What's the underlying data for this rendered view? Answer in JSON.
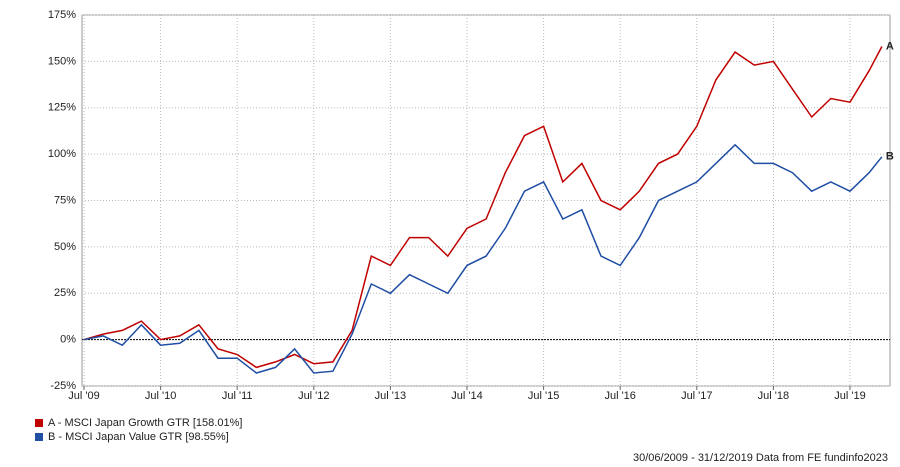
{
  "chart_data": {
    "type": "line",
    "x": [
      "2009-07",
      "2009-10",
      "2010-01",
      "2010-04",
      "2010-07",
      "2010-10",
      "2011-01",
      "2011-04",
      "2011-07",
      "2011-10",
      "2012-01",
      "2012-04",
      "2012-07",
      "2012-10",
      "2013-01",
      "2013-04",
      "2013-07",
      "2013-10",
      "2014-01",
      "2014-04",
      "2014-07",
      "2014-10",
      "2015-01",
      "2015-04",
      "2015-07",
      "2015-10",
      "2016-01",
      "2016-04",
      "2016-07",
      "2016-10",
      "2017-01",
      "2017-04",
      "2017-07",
      "2017-10",
      "2018-01",
      "2018-04",
      "2018-07",
      "2018-10",
      "2019-01",
      "2019-04",
      "2019-07",
      "2019-10",
      "2019-12"
    ],
    "series": [
      {
        "name": "A - MSCI Japan Growth GTR [158.01%]",
        "label": "A",
        "color": "#c00000",
        "values": [
          0,
          3,
          5,
          10,
          0,
          2,
          8,
          -5,
          -8,
          -15,
          -12,
          -8,
          -13,
          -12,
          5,
          45,
          40,
          55,
          55,
          45,
          60,
          65,
          90,
          110,
          115,
          85,
          95,
          75,
          70,
          80,
          95,
          100,
          115,
          140,
          155,
          148,
          150,
          135,
          120,
          130,
          128,
          145,
          158.01
        ]
      },
      {
        "name": "B - MSCI Japan Value GTR [98.55%]",
        "label": "B",
        "color": "#1f4ea3",
        "values": [
          0,
          2,
          -3,
          8,
          -3,
          -2,
          5,
          -10,
          -10,
          -18,
          -15,
          -5,
          -18,
          -17,
          3,
          30,
          25,
          35,
          30,
          25,
          40,
          45,
          60,
          80,
          85,
          65,
          70,
          45,
          40,
          55,
          75,
          80,
          85,
          95,
          105,
          95,
          95,
          90,
          80,
          85,
          80,
          90,
          98.55
        ]
      }
    ],
    "ylim": [
      -25,
      175
    ],
    "yticks": [
      {
        "value": -25,
        "label": "-25%"
      },
      {
        "value": 0,
        "label": "0%"
      },
      {
        "value": 25,
        "label": "25%"
      },
      {
        "value": 50,
        "label": "50%"
      },
      {
        "value": 75,
        "label": "75%"
      },
      {
        "value": 100,
        "label": "100%"
      },
      {
        "value": 125,
        "label": "125%"
      },
      {
        "value": 150,
        "label": "150%"
      },
      {
        "value": 175,
        "label": "175%"
      }
    ],
    "xticks": [
      {
        "value": "2009-07",
        "label": "Jul '09"
      },
      {
        "value": "2010-07",
        "label": "Jul '10"
      },
      {
        "value": "2011-07",
        "label": "Jul '11"
      },
      {
        "value": "2012-07",
        "label": "Jul '12"
      },
      {
        "value": "2013-07",
        "label": "Jul '13"
      },
      {
        "value": "2014-07",
        "label": "Jul '14"
      },
      {
        "value": "2015-07",
        "label": "Jul '15"
      },
      {
        "value": "2016-07",
        "label": "Jul '16"
      },
      {
        "value": "2017-07",
        "label": "Jul '17"
      },
      {
        "value": "2018-07",
        "label": "Jul '18"
      },
      {
        "value": "2019-07",
        "label": "Jul '19"
      }
    ],
    "grid": true,
    "footer": "30/06/2009 - 31/12/2019 Data from FE fundinfo2023"
  }
}
